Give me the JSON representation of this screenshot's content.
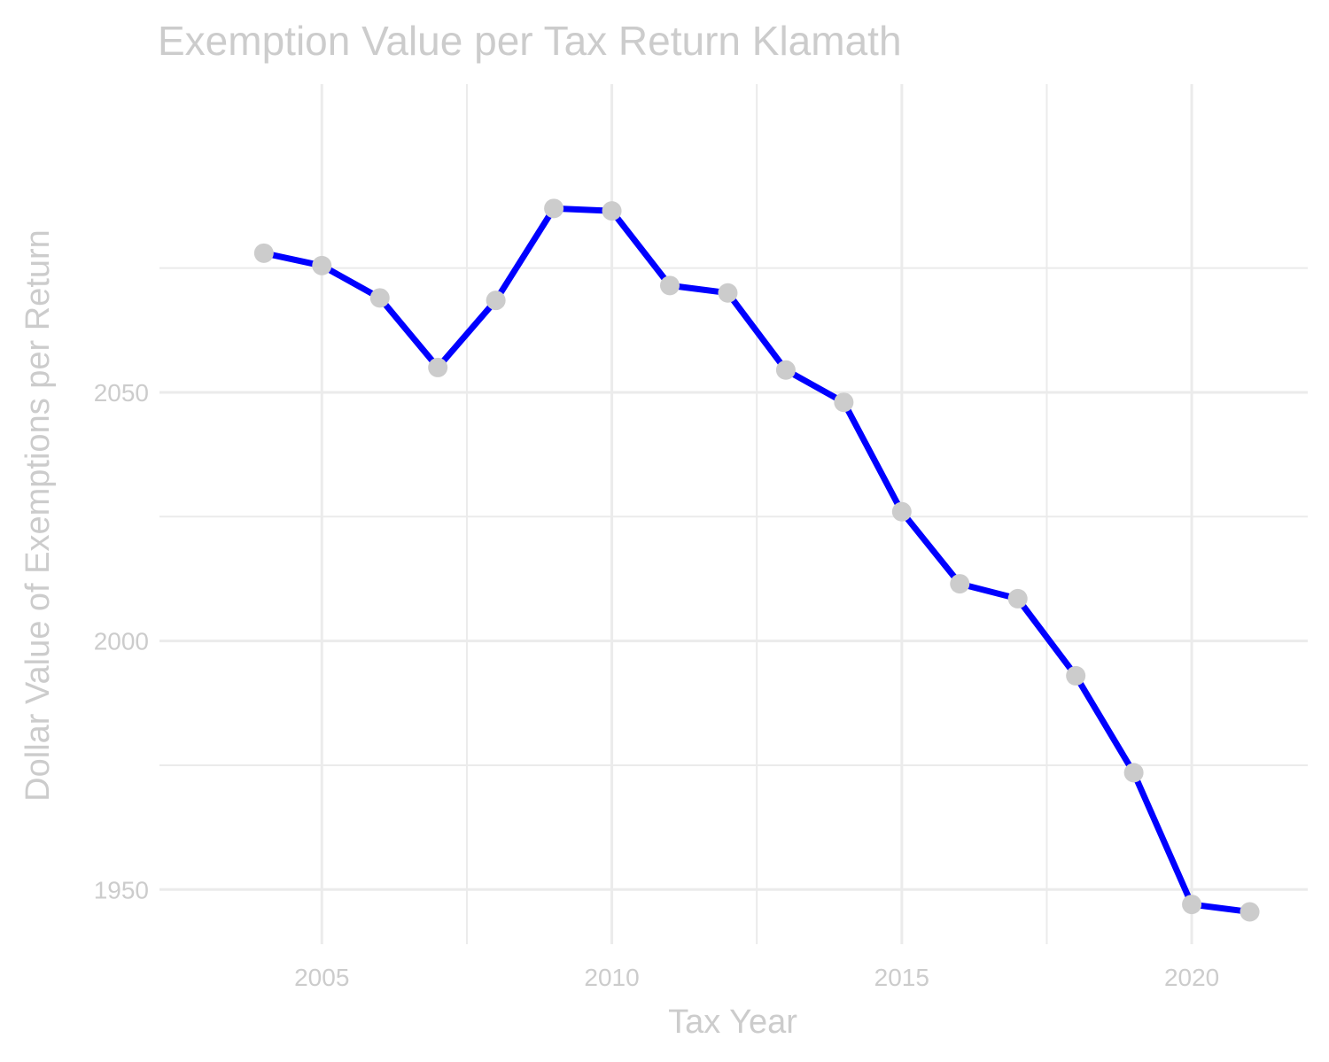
{
  "chart_data": {
    "type": "line",
    "title": "Exemption Value per Tax Return Klamath",
    "xlabel": "Tax Year",
    "ylabel": "Dollar Value of Exemptions per Return",
    "x": [
      2004,
      2005,
      2006,
      2007,
      2008,
      2009,
      2010,
      2011,
      2012,
      2013,
      2014,
      2015,
      2016,
      2017,
      2018,
      2019,
      2020,
      2021
    ],
    "series": [
      {
        "values": [
          2078,
          2075.5,
          2069,
          2055,
          2068.5,
          2087,
          2086.5,
          2071.5,
          2070,
          2054.5,
          2048,
          2026,
          2011.5,
          2008.5,
          1993,
          1973.5,
          1947,
          1945.5
        ],
        "line_color": "#0000ff",
        "point_color": "#cccccc"
      }
    ],
    "xlim": [
      2002.2,
      2022
    ],
    "ylim": [
      1939,
      2112
    ],
    "x_ticks": [
      2005,
      2010,
      2015,
      2020
    ],
    "x_minor_ticks": [
      2007.5,
      2012.5,
      2017.5
    ],
    "y_ticks": [
      1950,
      2000,
      2050
    ],
    "y_minor_ticks": [
      1975,
      2025,
      2075
    ],
    "grid": true,
    "legend": "none",
    "colors": {
      "grid": "#ebebeb",
      "text": "#cccccc",
      "background": "#ffffff"
    }
  }
}
